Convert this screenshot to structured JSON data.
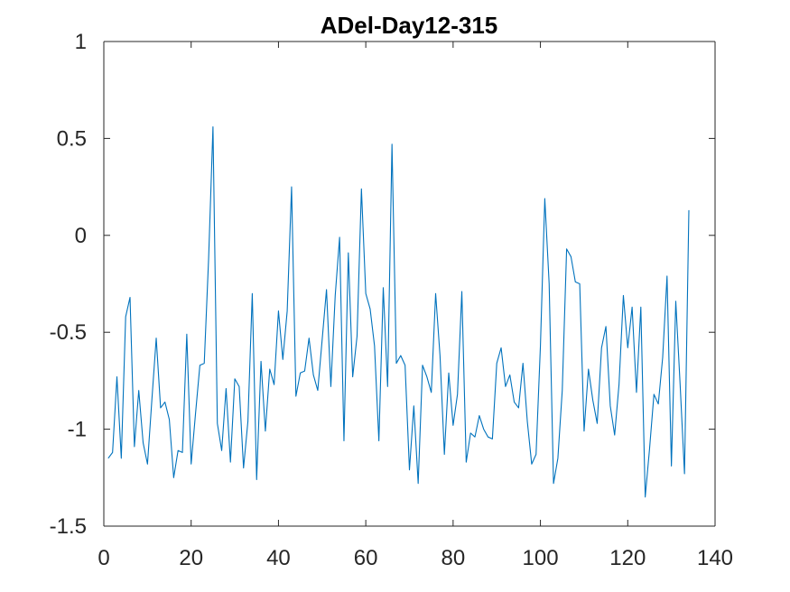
{
  "chart_data": {
    "type": "line",
    "title": "ADel-Day12-315",
    "xlabel": "",
    "ylabel": "",
    "xlim": [
      0,
      140
    ],
    "ylim": [
      -1.5,
      1
    ],
    "xticks": [
      0,
      20,
      40,
      60,
      80,
      100,
      120,
      140
    ],
    "yticks": [
      1,
      0.5,
      0,
      -0.5,
      -1,
      -1.5
    ],
    "xtick_labels": [
      "0",
      "20",
      "40",
      "60",
      "80",
      "100",
      "120",
      "140"
    ],
    "ytick_labels": [
      "1",
      "0.5",
      "0",
      "-0.5",
      "-1",
      "-1.5"
    ],
    "grid": false,
    "series": [
      {
        "color": "#0072bd",
        "x": [
          1,
          2,
          3,
          4,
          5,
          6,
          7,
          8,
          9,
          10,
          11,
          12,
          13,
          14,
          15,
          16,
          17,
          18,
          19,
          20,
          21,
          22,
          23,
          24,
          25,
          26,
          27,
          28,
          29,
          30,
          31,
          32,
          33,
          34,
          35,
          36,
          37,
          38,
          39,
          40,
          41,
          42,
          43,
          44,
          45,
          46,
          47,
          48,
          49,
          50,
          51,
          52,
          53,
          54,
          55,
          56,
          57,
          58,
          59,
          60,
          61,
          62,
          63,
          64,
          65,
          66,
          67,
          68,
          69,
          70,
          71,
          72,
          73,
          74,
          75,
          76,
          77,
          78,
          79,
          80,
          81,
          82,
          83,
          84,
          85,
          86,
          87,
          88,
          89,
          90,
          91,
          92,
          93,
          94,
          95,
          96,
          97,
          98,
          99,
          100,
          101,
          102,
          103,
          104,
          105,
          106,
          107,
          108,
          109,
          110,
          111,
          112,
          113,
          114,
          115,
          116,
          117,
          118,
          119,
          120,
          121,
          122,
          123,
          124,
          125,
          126,
          127,
          128,
          129,
          130,
          131,
          132,
          133,
          134
        ],
        "y": [
          -1.15,
          -1.12,
          -0.73,
          -1.15,
          -0.42,
          -0.32,
          -1.09,
          -0.8,
          -1.07,
          -1.18,
          -0.85,
          -0.53,
          -0.89,
          -0.86,
          -0.95,
          -1.25,
          -1.11,
          -1.12,
          -0.51,
          -1.18,
          -0.92,
          -0.67,
          -0.66,
          -0.12,
          0.56,
          -0.97,
          -1.11,
          -0.79,
          -1.17,
          -0.74,
          -0.78,
          -1.2,
          -0.96,
          -0.3,
          -1.26,
          -0.65,
          -1.01,
          -0.69,
          -0.77,
          -0.39,
          -0.64,
          -0.39,
          0.25,
          -0.83,
          -0.71,
          -0.7,
          -0.53,
          -0.72,
          -0.8,
          -0.54,
          -0.28,
          -0.78,
          -0.31,
          -0.01,
          -1.06,
          -0.09,
          -0.73,
          -0.52,
          0.24,
          -0.3,
          -0.38,
          -0.57,
          -1.06,
          -0.27,
          -0.78,
          0.47,
          -0.66,
          -0.62,
          -0.67,
          -1.21,
          -0.88,
          -1.28,
          -0.67,
          -0.73,
          -0.81,
          -0.3,
          -0.62,
          -1.13,
          -0.71,
          -0.98,
          -0.82,
          -0.29,
          -1.17,
          -1.02,
          -1.04,
          -0.93,
          -1.0,
          -1.04,
          -1.05,
          -0.66,
          -0.58,
          -0.78,
          -0.72,
          -0.86,
          -0.89,
          -0.66,
          -0.96,
          -1.18,
          -1.13,
          -0.57,
          0.19,
          -0.25,
          -1.28,
          -1.15,
          -0.8,
          -0.07,
          -0.11,
          -0.24,
          -0.25,
          -1.01,
          -0.69,
          -0.85,
          -0.97,
          -0.58,
          -0.47,
          -0.88,
          -1.03,
          -0.77,
          -0.31,
          -0.58,
          -0.37,
          -0.81,
          -0.37,
          -1.35,
          -1.1,
          -0.82,
          -0.87,
          -0.63,
          -0.21,
          -1.19,
          -0.34,
          -0.77,
          -1.23,
          0.13
        ]
      }
    ]
  }
}
